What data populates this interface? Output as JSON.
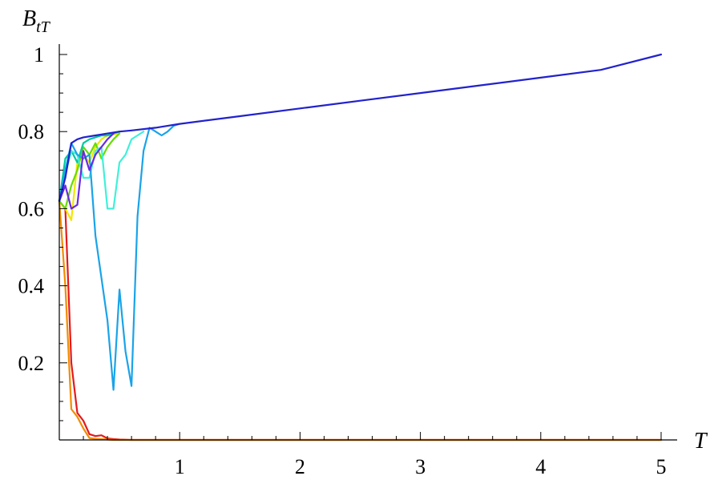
{
  "chart_data": {
    "type": "line",
    "title": "",
    "xlabel": "T",
    "ylabel": {
      "main": "B",
      "sub": "tT"
    },
    "xlim": [
      0,
      5.1
    ],
    "ylim": [
      0,
      1.05
    ],
    "x_ticks": [
      1,
      2,
      3,
      4,
      5
    ],
    "x_tick_labels": [
      "1",
      "2",
      "3",
      "4",
      "5"
    ],
    "y_ticks": [
      0.2,
      0.4,
      0.6,
      0.8,
      1.0
    ],
    "y_tick_labels": [
      "0.2",
      "0.4",
      "0.6",
      "0.8",
      "1"
    ],
    "x_minor_step": 0.2,
    "y_minor_step": 0.05,
    "grid": false,
    "legend": "none",
    "series": [
      {
        "color": "#e41a1c",
        "x": [
          0,
          0.05,
          0.1,
          0.15,
          0.2,
          0.25,
          0.3,
          0.35,
          0.4,
          0.45,
          0.5,
          0.6,
          0.8,
          1.0,
          2.0,
          3.0,
          4.0,
          5.0
        ],
        "y": [
          0.62,
          0.6,
          0.2,
          0.07,
          0.05,
          0.015,
          0.01,
          0.012,
          0.004,
          0.002,
          0.001,
          0,
          0,
          0,
          0,
          0,
          0,
          0
        ]
      },
      {
        "color": "#f28c00",
        "x": [
          0,
          0.05,
          0.1,
          0.15,
          0.2,
          0.25,
          0.3,
          0.35,
          0.4,
          0.45,
          0.5,
          0.6,
          0.8,
          1.0,
          2.0,
          3.0,
          4.0,
          5.0
        ],
        "y": [
          0.62,
          0.4,
          0.08,
          0.06,
          0.03,
          0.005,
          0.003,
          0.002,
          0.001,
          0,
          0,
          0,
          0,
          0,
          0,
          0,
          0,
          0
        ]
      },
      {
        "color": "#f2e600",
        "x": [
          0,
          0.05,
          0.1,
          0.15,
          0.2,
          0.25,
          0.3,
          0.35,
          0.4,
          0.5
        ],
        "y": [
          0.62,
          0.6,
          0.57,
          0.72,
          0.74,
          0.72,
          0.76,
          0.78,
          0.79,
          0.795
        ]
      },
      {
        "color": "#66dd00",
        "x": [
          0,
          0.05,
          0.1,
          0.15,
          0.2,
          0.25,
          0.3,
          0.35,
          0.4,
          0.45,
          0.5
        ],
        "y": [
          0.62,
          0.6,
          0.66,
          0.7,
          0.76,
          0.74,
          0.77,
          0.73,
          0.76,
          0.78,
          0.795
        ]
      },
      {
        "color": "#00c8a0",
        "x": [
          0,
          0.05,
          0.1,
          0.15,
          0.2,
          0.25,
          0.3,
          0.35,
          0.4,
          0.45,
          0.5
        ],
        "y": [
          0.62,
          0.73,
          0.75,
          0.72,
          0.77,
          0.78,
          0.785,
          0.79,
          0.79,
          0.795,
          0.8
        ]
      },
      {
        "color": "#40f0d8",
        "x": [
          0,
          0.05,
          0.1,
          0.15,
          0.2,
          0.25,
          0.3,
          0.35,
          0.4,
          0.45,
          0.5,
          0.55,
          0.6,
          0.65,
          0.7
        ],
        "y": [
          0.62,
          0.69,
          0.75,
          0.74,
          0.68,
          0.68,
          0.75,
          0.76,
          0.6,
          0.6,
          0.72,
          0.74,
          0.78,
          0.79,
          0.8
        ]
      },
      {
        "color": "#1aa3e8",
        "x": [
          0,
          0.05,
          0.1,
          0.15,
          0.2,
          0.25,
          0.3,
          0.35,
          0.4,
          0.45,
          0.5,
          0.55,
          0.6,
          0.65,
          0.7,
          0.75,
          0.8,
          0.85,
          0.9,
          0.95,
          1.0
        ],
        "y": [
          0.62,
          0.7,
          0.77,
          0.74,
          0.73,
          0.74,
          0.53,
          0.42,
          0.31,
          0.13,
          0.39,
          0.23,
          0.14,
          0.58,
          0.75,
          0.81,
          0.8,
          0.79,
          0.8,
          0.815,
          0.82
        ]
      },
      {
        "color": "#6a2be0",
        "x": [
          0,
          0.05,
          0.1,
          0.15,
          0.2,
          0.25,
          0.3,
          0.35,
          0.4,
          0.45
        ],
        "y": [
          0.62,
          0.66,
          0.6,
          0.61,
          0.75,
          0.7,
          0.74,
          0.76,
          0.78,
          0.795
        ]
      },
      {
        "color": "#2222cc",
        "x": [
          0,
          0.05,
          0.1,
          0.15,
          0.2,
          0.3,
          0.4,
          0.5,
          0.6,
          0.8,
          1.0,
          1.5,
          2.0,
          2.5,
          3.0,
          3.5,
          4.0,
          4.5,
          5.0
        ],
        "y": [
          0.62,
          0.68,
          0.77,
          0.78,
          0.785,
          0.79,
          0.795,
          0.8,
          0.803,
          0.81,
          0.82,
          0.84,
          0.86,
          0.88,
          0.9,
          0.92,
          0.94,
          0.96,
          1.0
        ]
      }
    ]
  }
}
